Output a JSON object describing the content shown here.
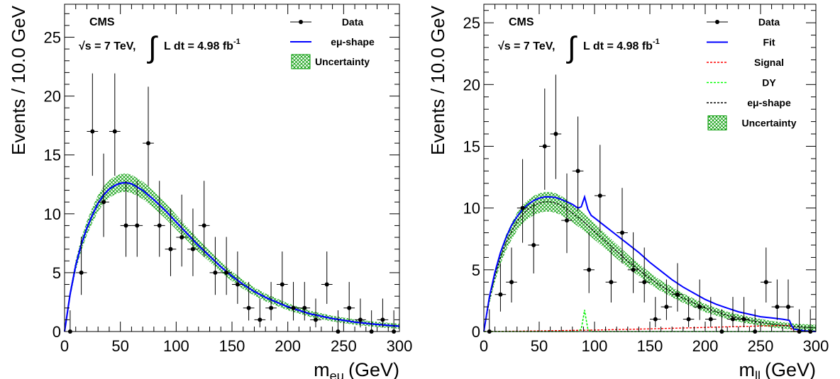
{
  "chart_data": [
    {
      "type": "scatter",
      "cms_label": "CMS",
      "energy_label": "√s = 7 TeV,",
      "lumi_label": "L dt = 4.98 fb",
      "lumi_exp": "-1",
      "ylabel": "Events / 10.0 GeV",
      "xlabel_main": "m",
      "xlabel_sub": "eμ",
      "xlabel_unit": "(GeV)",
      "xlim": [
        0,
        300
      ],
      "ylim": [
        0,
        27.8
      ],
      "xticks": [
        "0",
        "50",
        "100",
        "150",
        "200",
        "250",
        "300"
      ],
      "yticks": [
        "0",
        "5",
        "10",
        "15",
        "20",
        "25"
      ],
      "grid": false,
      "legend_position": "top-right",
      "legend": [
        {
          "label": "Data",
          "style": "marker",
          "color": "#000000"
        },
        {
          "label": "eμ-shape",
          "style": "line",
          "color": "#0000ff"
        },
        {
          "label": "Uncertainty",
          "style": "hatch",
          "color": "#00aa00"
        }
      ],
      "data_points": {
        "x": [
          5,
          15,
          25,
          35,
          45,
          55,
          65,
          75,
          85,
          95,
          105,
          115,
          125,
          135,
          145,
          155,
          165,
          175,
          185,
          195,
          205,
          215,
          225,
          235,
          245,
          255,
          265,
          275,
          285,
          295
        ],
        "y": [
          0,
          5,
          17,
          11,
          17,
          9,
          9,
          16,
          9,
          7,
          8,
          7,
          9,
          5,
          5,
          4,
          2,
          1,
          2,
          4,
          2,
          2,
          1,
          4,
          0,
          2,
          1,
          0,
          1,
          0
        ]
      },
      "fit_curve": {
        "name": "eμ-shape",
        "x": [
          0,
          5,
          10,
          15,
          20,
          25,
          30,
          35,
          40,
          45,
          50,
          55,
          60,
          70,
          80,
          90,
          100,
          110,
          120,
          130,
          140,
          150,
          160,
          170,
          180,
          190,
          200,
          220,
          240,
          260,
          280,
          300
        ],
        "y": [
          0,
          3.2,
          5.6,
          7.4,
          8.8,
          9.9,
          10.9,
          11.6,
          12.1,
          12.4,
          12.6,
          12.65,
          12.55,
          12.0,
          11.2,
          10.3,
          9.3,
          8.3,
          7.3,
          6.4,
          5.5,
          4.7,
          4.0,
          3.4,
          2.9,
          2.5,
          2.1,
          1.5,
          1.1,
          0.8,
          0.6,
          0.45
        ],
        "uncertainty_halfwidth": 0.55
      }
    },
    {
      "type": "scatter",
      "cms_label": "CMS",
      "energy_label": "√s = 7 TeV,",
      "lumi_label": "L dt = 4.98 fb",
      "lumi_exp": "-1",
      "ylabel": "Events / 10.0 GeV",
      "xlabel_main": "m",
      "xlabel_sub": "ll",
      "xlabel_unit": "(GeV)",
      "xlim": [
        0,
        300
      ],
      "ylim": [
        0,
        26.5
      ],
      "xticks": [
        "0",
        "50",
        "100",
        "150",
        "200",
        "250",
        "300"
      ],
      "yticks": [
        "0",
        "5",
        "10",
        "15",
        "20",
        "25"
      ],
      "grid": false,
      "legend_position": "top-right",
      "legend": [
        {
          "label": "Data",
          "style": "marker",
          "color": "#000000"
        },
        {
          "label": "Fit",
          "style": "line",
          "color": "#0000ff"
        },
        {
          "label": "Signal",
          "style": "dash",
          "color": "#ff0000"
        },
        {
          "label": "DY",
          "style": "dash",
          "color": "#00ff00"
        },
        {
          "label": "eμ-shape",
          "style": "dash",
          "color": "#000000"
        },
        {
          "label": "Uncertainty",
          "style": "hatch",
          "color": "#00aa00"
        }
      ],
      "data_points": {
        "x": [
          5,
          15,
          25,
          35,
          45,
          55,
          65,
          75,
          85,
          95,
          105,
          115,
          125,
          135,
          145,
          155,
          165,
          175,
          185,
          195,
          205,
          215,
          225,
          235,
          245,
          255,
          265,
          275,
          285,
          295
        ],
        "y": [
          0,
          3,
          4,
          10,
          7,
          15,
          16,
          9,
          13,
          5,
          11,
          4,
          8,
          5,
          4,
          1,
          2,
          3,
          1,
          2,
          1,
          0,
          1,
          1,
          0,
          4,
          2,
          2,
          0,
          0
        ]
      },
      "fit_curve": {
        "name": "Fit",
        "x": [
          0,
          5,
          10,
          15,
          20,
          25,
          30,
          35,
          40,
          45,
          50,
          55,
          60,
          65,
          70,
          75,
          80,
          85,
          88,
          91,
          94,
          97,
          100,
          110,
          120,
          130,
          140,
          150,
          160,
          170,
          180,
          190,
          200,
          210,
          220,
          230,
          240,
          250,
          260,
          270,
          276,
          278,
          280,
          290,
          300
        ],
        "y": [
          0,
          2.8,
          4.8,
          6.4,
          7.6,
          8.6,
          9.3,
          9.9,
          10.3,
          10.6,
          10.8,
          10.9,
          10.9,
          10.85,
          10.7,
          10.5,
          10.3,
          10.0,
          10.1,
          10.9,
          9.9,
          9.4,
          9.2,
          8.5,
          7.8,
          7.1,
          6.4,
          5.6,
          4.9,
          4.2,
          3.6,
          3.1,
          2.6,
          2.2,
          1.9,
          1.6,
          1.4,
          1.2,
          1.1,
          1.0,
          0.9,
          0.5,
          0.2,
          0.05,
          0
        ]
      },
      "emu_curve": {
        "name": "eμ-shape",
        "x": [
          0,
          5,
          10,
          15,
          20,
          25,
          30,
          35,
          40,
          45,
          50,
          55,
          60,
          65,
          70,
          80,
          90,
          100,
          110,
          120,
          130,
          140,
          150,
          160,
          170,
          180,
          190,
          200,
          220,
          240,
          260,
          280,
          300
        ],
        "y": [
          0,
          2.6,
          4.5,
          6.0,
          7.2,
          8.1,
          8.9,
          9.5,
          9.9,
          10.2,
          10.4,
          10.5,
          10.5,
          10.4,
          10.2,
          9.6,
          8.9,
          8.1,
          7.3,
          6.5,
          5.7,
          5.0,
          4.3,
          3.7,
          3.2,
          2.7,
          2.3,
          1.9,
          1.3,
          0.9,
          0.6,
          0.4,
          0.3
        ],
        "uncertainty_halfwidth": 0.65
      },
      "signal_curve": {
        "name": "Signal",
        "x": [
          0,
          50,
          100,
          150,
          200,
          250,
          276,
          278,
          280,
          300
        ],
        "y": [
          0,
          0.05,
          0.12,
          0.22,
          0.33,
          0.45,
          0.5,
          0.2,
          0,
          0
        ]
      },
      "dy_curve": {
        "name": "DY",
        "x": [
          0,
          85,
          88,
          90,
          91,
          92,
          94,
          97,
          300
        ],
        "y": [
          0,
          0,
          0.2,
          1.2,
          1.75,
          1.2,
          0.2,
          0,
          0
        ]
      }
    }
  ]
}
